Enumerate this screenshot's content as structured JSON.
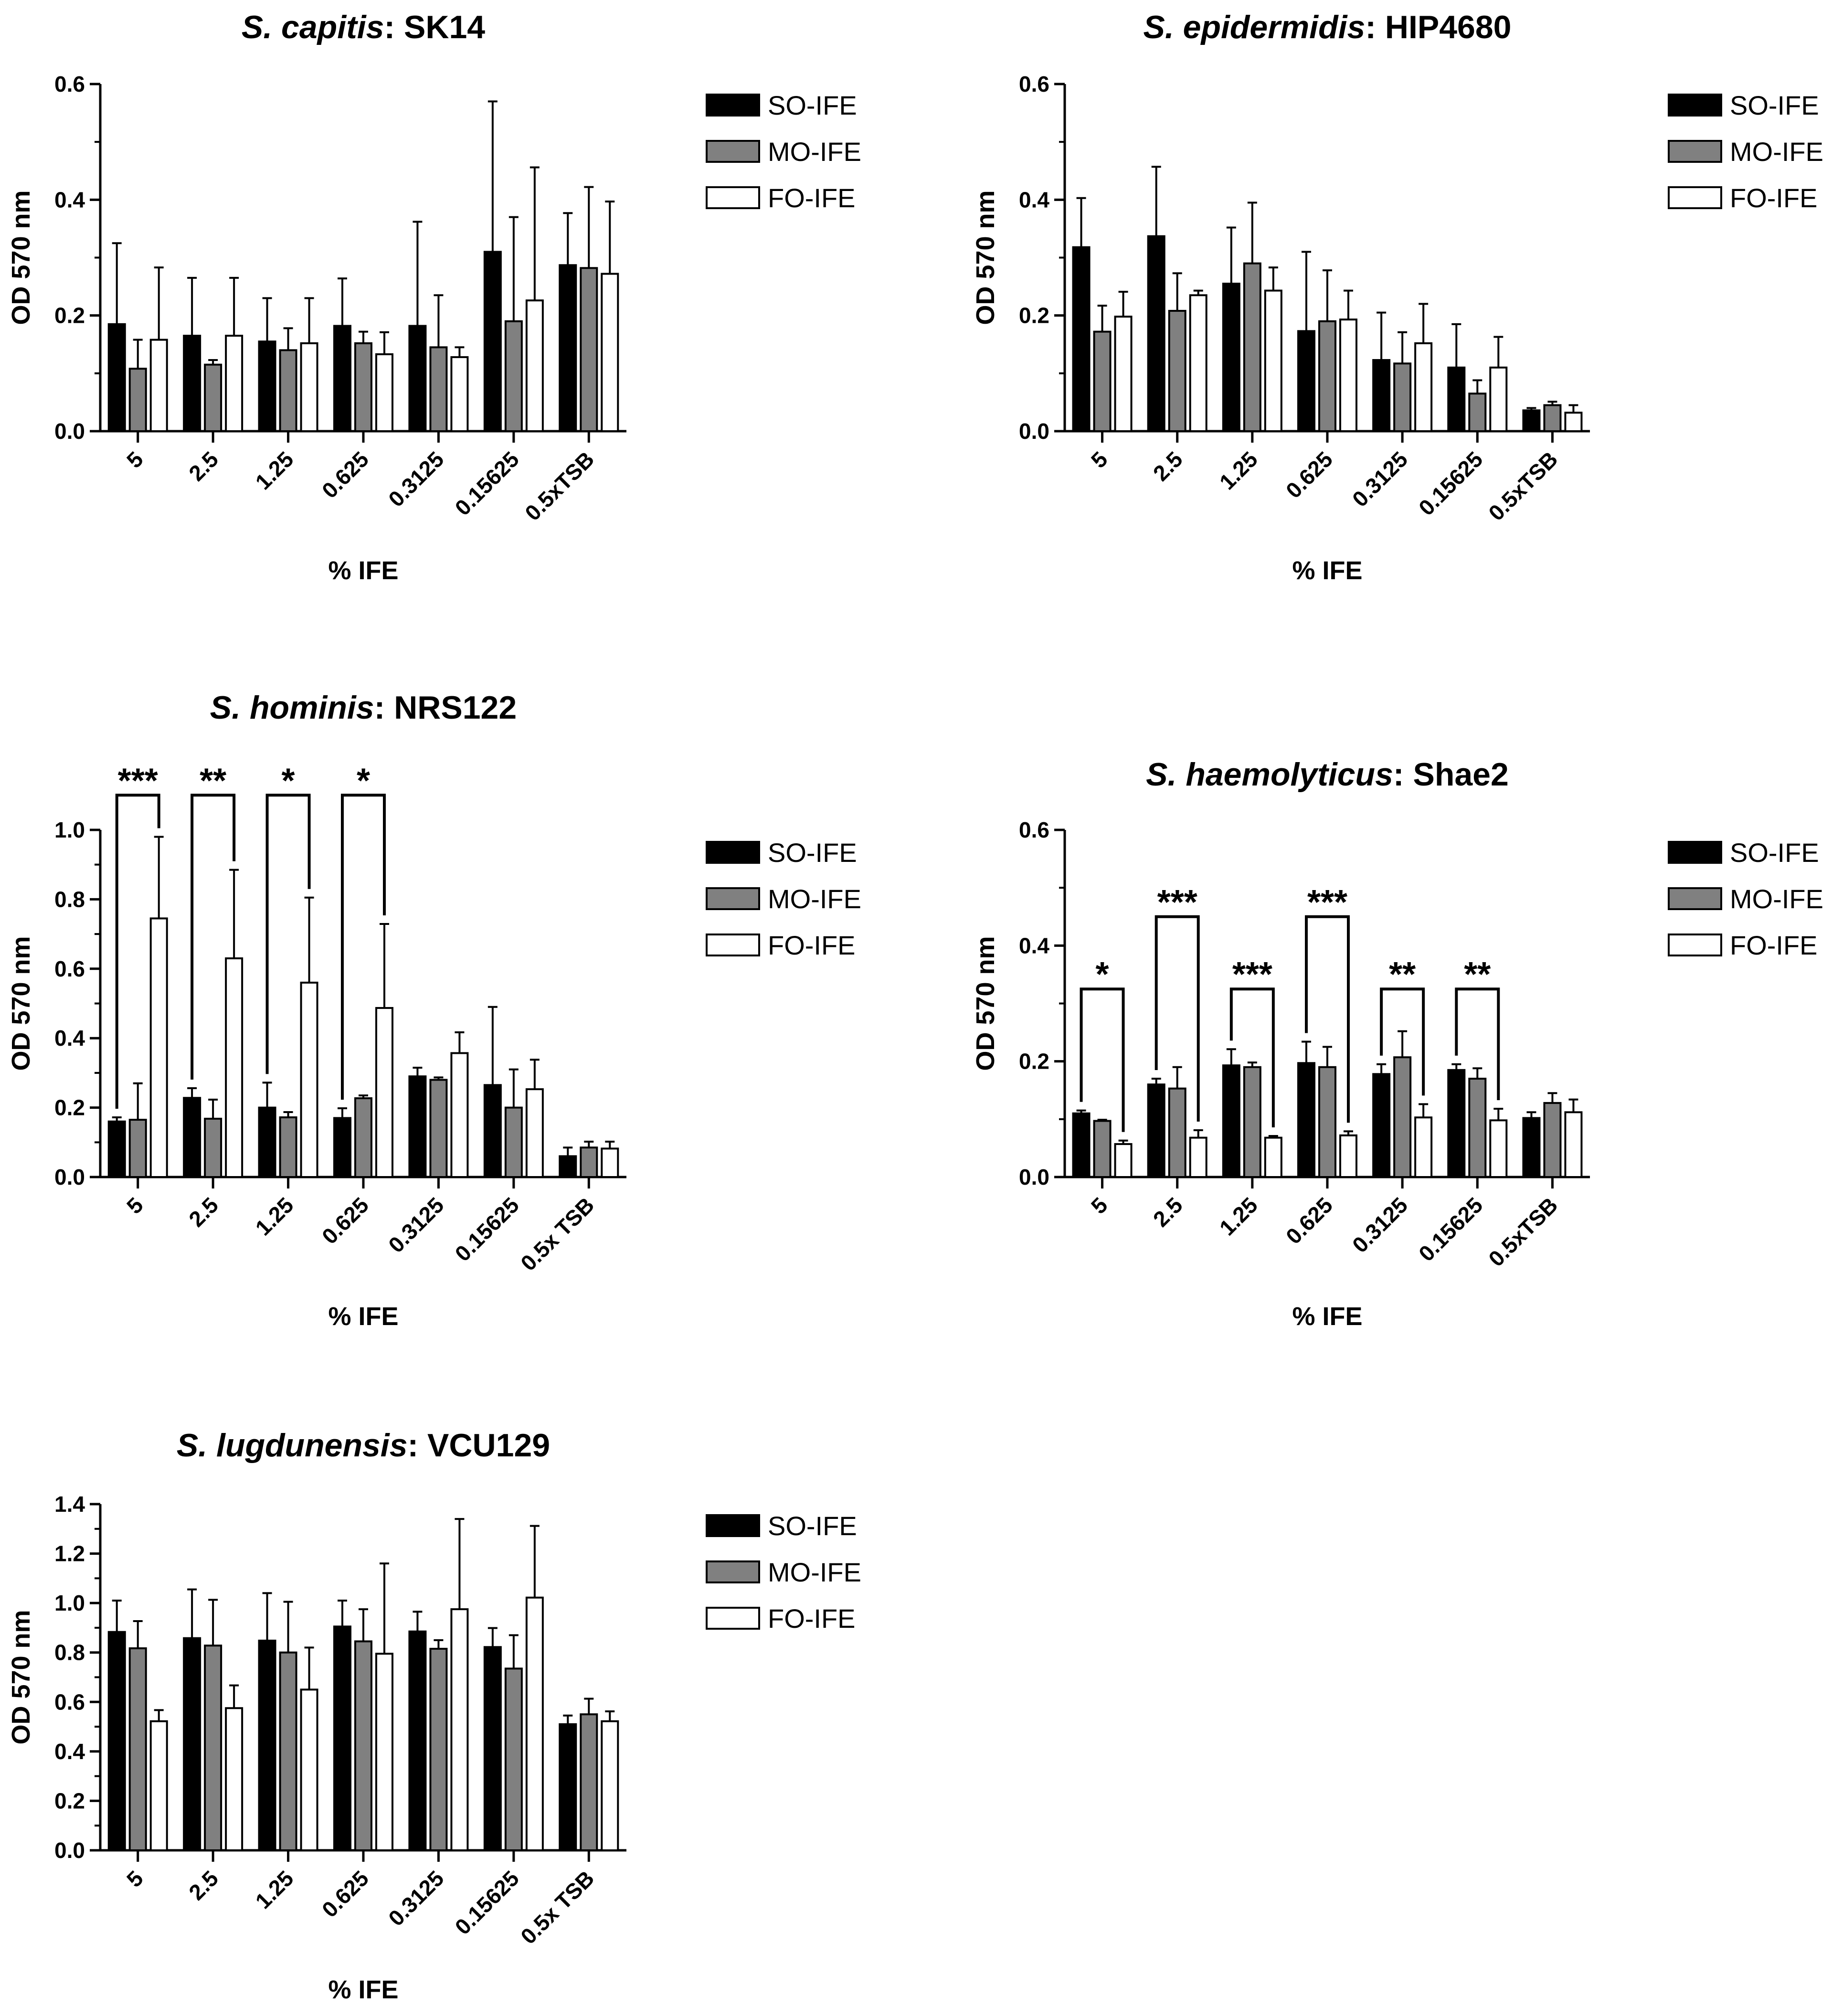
{
  "figure": {
    "legend_entries": [
      "SO-IFE",
      "MO-IFE",
      "FO-IFE"
    ],
    "colors": {
      "SO-IFE": "#000000",
      "MO-IFE": "#808080",
      "FO-IFE": "#ffffff"
    }
  },
  "chart_data": [
    {
      "type": "bar",
      "title_italic": "S. capitis",
      "title_rest": ": SK14",
      "xlabel": "% IFE",
      "ylabel": "OD 570 nm",
      "ylim": [
        0,
        0.6
      ],
      "yticks": [
        "0.0",
        "0.2",
        "0.4",
        "0.6"
      ],
      "categories": [
        "5",
        "2.5",
        "1.25",
        "0.625",
        "0.3125",
        "0.15625",
        "0.5xTSB"
      ],
      "series": [
        {
          "name": "SO-IFE",
          "values": [
            0.185,
            0.165,
            0.155,
            0.182,
            0.182,
            0.31,
            0.287
          ],
          "errors": [
            0.14,
            0.1,
            0.075,
            0.082,
            0.18,
            0.26,
            0.09
          ]
        },
        {
          "name": "MO-IFE",
          "values": [
            0.108,
            0.115,
            0.14,
            0.152,
            0.145,
            0.19,
            0.282
          ],
          "errors": [
            0.05,
            0.008,
            0.038,
            0.02,
            0.09,
            0.18,
            0.14
          ]
        },
        {
          "name": "FO-IFE",
          "values": [
            0.158,
            0.165,
            0.152,
            0.133,
            0.128,
            0.226,
            0.272
          ],
          "errors": [
            0.125,
            0.1,
            0.078,
            0.038,
            0.017,
            0.23,
            0.125
          ]
        }
      ],
      "significance": []
    },
    {
      "type": "bar",
      "title_italic": "S. epidermidis",
      "title_rest": ": HIP4680",
      "xlabel": "% IFE",
      "ylabel": "OD 570 nm",
      "ylim": [
        0,
        0.6
      ],
      "yticks": [
        "0.0",
        "0.2",
        "0.4",
        "0.6"
      ],
      "categories": [
        "5",
        "2.5",
        "1.25",
        "0.625",
        "0.3125",
        "0.15625",
        "0.5xTSB"
      ],
      "series": [
        {
          "name": "SO-IFE",
          "values": [
            0.318,
            0.337,
            0.255,
            0.173,
            0.123,
            0.11,
            0.036
          ],
          "errors": [
            0.085,
            0.12,
            0.097,
            0.137,
            0.082,
            0.075,
            0.004
          ]
        },
        {
          "name": "MO-IFE",
          "values": [
            0.172,
            0.208,
            0.29,
            0.19,
            0.117,
            0.065,
            0.045
          ],
          "errors": [
            0.045,
            0.065,
            0.105,
            0.088,
            0.054,
            0.023,
            0.006
          ]
        },
        {
          "name": "FO-IFE",
          "values": [
            0.198,
            0.235,
            0.243,
            0.193,
            0.152,
            0.11,
            0.032
          ],
          "errors": [
            0.043,
            0.008,
            0.04,
            0.05,
            0.068,
            0.053,
            0.013
          ]
        }
      ],
      "significance": []
    },
    {
      "type": "bar",
      "title_italic": "S. hominis",
      "title_rest": ": NRS122",
      "xlabel": "% IFE",
      "ylabel": "OD 570 nm",
      "ylim": [
        0,
        1.0
      ],
      "yticks": [
        "0.0",
        "0.2",
        "0.4",
        "0.6",
        "0.8",
        "1.0"
      ],
      "categories": [
        "5",
        "2.5",
        "1.25",
        "0.625",
        "0.3125",
        "0.15625",
        "0.5x TSB"
      ],
      "series": [
        {
          "name": "SO-IFE",
          "values": [
            0.16,
            0.228,
            0.2,
            0.17,
            0.29,
            0.265,
            0.06
          ],
          "errors": [
            0.012,
            0.028,
            0.072,
            0.028,
            0.025,
            0.225,
            0.025
          ]
        },
        {
          "name": "MO-IFE",
          "values": [
            0.165,
            0.168,
            0.172,
            0.227,
            0.28,
            0.2,
            0.085
          ],
          "errors": [
            0.105,
            0.055,
            0.015,
            0.008,
            0.007,
            0.11,
            0.017
          ]
        },
        {
          "name": "FO-IFE",
          "values": [
            0.745,
            0.63,
            0.56,
            0.487,
            0.357,
            0.253,
            0.082
          ],
          "errors": [
            0.235,
            0.255,
            0.245,
            0.242,
            0.06,
            0.085,
            0.02
          ]
        }
      ],
      "significance": [
        {
          "category": 0,
          "label": "***",
          "y": 1.1
        },
        {
          "category": 1,
          "label": "**",
          "y": 1.1
        },
        {
          "category": 2,
          "label": "*",
          "y": 1.1
        },
        {
          "category": 3,
          "label": "*",
          "y": 1.1
        }
      ]
    },
    {
      "type": "bar",
      "title_italic": "S. haemolyticus",
      "title_rest": ": Shae2",
      "xlabel": "% IFE",
      "ylabel": "OD 570 nm",
      "ylim": [
        0,
        0.6
      ],
      "yticks": [
        "0.0",
        "0.2",
        "0.4",
        "0.6"
      ],
      "categories": [
        "5",
        "2.5",
        "1.25",
        "0.625",
        "0.3125",
        "0.15625",
        "0.5xTSB"
      ],
      "series": [
        {
          "name": "SO-IFE",
          "values": [
            0.11,
            0.16,
            0.193,
            0.197,
            0.178,
            0.185,
            0.102
          ],
          "errors": [
            0.005,
            0.01,
            0.028,
            0.037,
            0.017,
            0.01,
            0.01
          ]
        },
        {
          "name": "MO-IFE",
          "values": [
            0.097,
            0.153,
            0.19,
            0.19,
            0.207,
            0.17,
            0.128
          ],
          "errors": [
            0.002,
            0.037,
            0.008,
            0.035,
            0.045,
            0.018,
            0.017
          ]
        },
        {
          "name": "FO-IFE",
          "values": [
            0.057,
            0.068,
            0.068,
            0.072,
            0.103,
            0.098,
            0.112
          ],
          "errors": [
            0.006,
            0.013,
            0.003,
            0.007,
            0.023,
            0.02,
            0.022
          ]
        }
      ],
      "significance": [
        {
          "category": 0,
          "label": "*",
          "y": 0.325
        },
        {
          "category": 1,
          "label": "***",
          "y": 0.45
        },
        {
          "category": 2,
          "label": "***",
          "y": 0.325
        },
        {
          "category": 3,
          "label": "***",
          "y": 0.45
        },
        {
          "category": 4,
          "label": "**",
          "y": 0.325
        },
        {
          "category": 5,
          "label": "**",
          "y": 0.325
        }
      ]
    },
    {
      "type": "bar",
      "title_italic": "S. lugdunensis",
      "title_rest": ": VCU129",
      "xlabel": "% IFE",
      "ylabel": "OD 570 nm",
      "ylim": [
        0,
        1.4
      ],
      "yticks": [
        "0.0",
        "0.2",
        "0.4",
        "0.6",
        "0.8",
        "1.0",
        "1.2",
        "1.4"
      ],
      "categories": [
        "5",
        "2.5",
        "1.25",
        "0.625",
        "0.3125",
        "0.15625",
        "0.5x TSB"
      ],
      "series": [
        {
          "name": "SO-IFE",
          "values": [
            0.883,
            0.858,
            0.848,
            0.905,
            0.885,
            0.822,
            0.51
          ],
          "errors": [
            0.127,
            0.197,
            0.192,
            0.105,
            0.08,
            0.077,
            0.035
          ]
        },
        {
          "name": "MO-IFE",
          "values": [
            0.817,
            0.828,
            0.8,
            0.845,
            0.815,
            0.735,
            0.55
          ],
          "errors": [
            0.11,
            0.185,
            0.205,
            0.13,
            0.035,
            0.135,
            0.063
          ]
        },
        {
          "name": "FO-IFE",
          "values": [
            0.522,
            0.575,
            0.65,
            0.795,
            0.975,
            1.022,
            0.522
          ],
          "errors": [
            0.045,
            0.092,
            0.17,
            0.365,
            0.365,
            0.29,
            0.04
          ]
        }
      ],
      "significance": []
    }
  ]
}
